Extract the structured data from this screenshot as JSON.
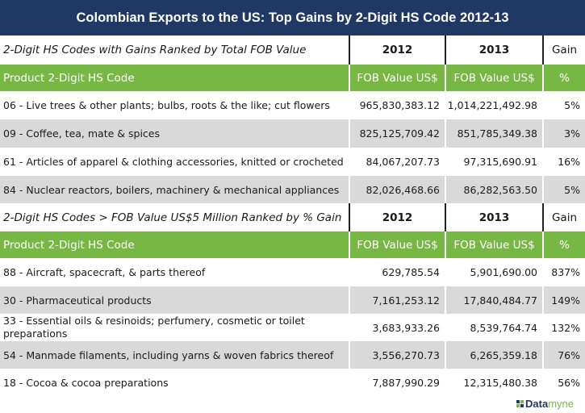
{
  "title": "Colombian Exports to the US: Top Gains by 2-Digit HS Code 2012-13",
  "colors": {
    "title_bg": "#1f3864",
    "header_green": "#76b843",
    "row_alt": "#d9d9d9"
  },
  "sections": [
    {
      "heading": "2-Digit HS Codes with Gains Ranked by Total FOB Value",
      "year_1": "2012",
      "year_2": "2013",
      "gain": "Gain",
      "subheader": {
        "product": "Product 2-Digit HS Code",
        "fob_1": "FOB Value US$",
        "fob_2": "FOB Value US$",
        "pct": "%"
      },
      "rows": [
        {
          "product": "06 - Live trees & other plants; bulbs, roots & the like; cut flowers",
          "v2012": "965,830,383.12",
          "v2013": "1,014,221,492.98",
          "gain": "5%"
        },
        {
          "product": "09 - Coffee, tea, mate & spices",
          "v2012": "825,125,709.42",
          "v2013": "851,785,349.38",
          "gain": "3%"
        },
        {
          "product": "61 - Articles of apparel & clothing accessories, knitted or crocheted",
          "v2012": "84,067,207.73",
          "v2013": "97,315,690.91",
          "gain": "16%"
        },
        {
          "product": "84 - Nuclear reactors, boilers, machinery & mechanical appliances",
          "v2012": "82,026,468.66",
          "v2013": "86,282,563.50",
          "gain": "5%"
        }
      ]
    },
    {
      "heading": "2-Digit HS Codes > FOB Value US$5 Million Ranked by % Gain",
      "year_1": "2012",
      "year_2": "2013",
      "gain": "Gain",
      "subheader": {
        "product": "Product 2-Digit HS Code",
        "fob_1": "FOB Value US$",
        "fob_2": "FOB Value US$",
        "pct": "%"
      },
      "rows": [
        {
          "product": "88 - Aircraft, spacecraft, & parts thereof",
          "v2012": "629,785.54",
          "v2013": "5,901,690.00",
          "gain": "837%"
        },
        {
          "product": "30 - Pharmaceutical products",
          "v2012": "7,161,253.12",
          "v2013": "17,840,484.77",
          "gain": "149%"
        },
        {
          "product": "33 - Essential oils & resinoids; perfumery, cosmetic or toilet preparations",
          "v2012": "3,683,933.26",
          "v2013": "8,539,764.74",
          "gain": "132%"
        },
        {
          "product": "54 - Manmade filaments, including yarns & woven fabrics thereof",
          "v2012": "3,556,270.73",
          "v2013": "6,265,359.18",
          "gain": "76%"
        },
        {
          "product": "18 - Cocoa & cocoa preparations",
          "v2012": "7,887,990.29",
          "v2013": "12,315,480.38",
          "gain": "56%"
        }
      ]
    }
  ],
  "logo": {
    "part_1": "Data",
    "part_2": "myne",
    "icon": "datamyne-squares-icon"
  }
}
